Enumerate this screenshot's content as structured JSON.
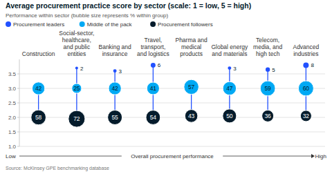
{
  "chart_data": {
    "type": "bubble",
    "title": "Average procurement practice score by sector (scale: 1 = low, 5 = high)",
    "subtitle": "Performance within sector (bubble size represents % within group)",
    "xlabel": "Overall procurement performance",
    "annotations": [
      "Low",
      "High"
    ],
    "source": "Source: McKinsey GPE benchmarking database",
    "categories": [
      "Construction",
      "Social-sector, healthcare, and public entities",
      "Banking and insurance",
      "Travel, transport, and logistics",
      "Pharma and medical products",
      "Global energy and materials",
      "Telecom, media, and high tech",
      "Advanced industries"
    ],
    "series": [
      {
        "name": "Procurement leaders",
        "color": "#2251ff",
        "values": [
          null,
          3.7,
          3.6,
          3.8,
          null,
          3.7,
          3.65,
          3.8
        ],
        "sizes": [
          null,
          2,
          3,
          6,
          null,
          3,
          5,
          8
        ]
      },
      {
        "name": "Middle of the pack",
        "color": "#00a9f4",
        "values": [
          3.0,
          3.0,
          3.0,
          3.0,
          3.05,
          3.0,
          3.0,
          3.0
        ],
        "sizes": [
          42,
          25,
          42,
          41,
          57,
          47,
          59,
          60
        ]
      },
      {
        "name": "Procurement followers",
        "color": "#051c2c",
        "values": [
          2.0,
          1.95,
          2.0,
          2.0,
          2.05,
          2.05,
          2.05,
          2.05
        ],
        "sizes": [
          58,
          72,
          55,
          54,
          43,
          50,
          36,
          32
        ]
      }
    ],
    "ylim": [
      1.0,
      4.0
    ],
    "yticks": [
      {
        "value": 1.0,
        "label": "1.0"
      },
      {
        "value": 1.5,
        "label": "1.5"
      },
      {
        "value": 2.0,
        "label": "2.0"
      },
      {
        "value": 2.5,
        "label": "2.5"
      },
      {
        "value": 3.0,
        "label": "3.0"
      },
      {
        "value": 3.5,
        "label": "3.5"
      }
    ],
    "grid": true,
    "legend": "top-left",
    "data_labels": true
  }
}
